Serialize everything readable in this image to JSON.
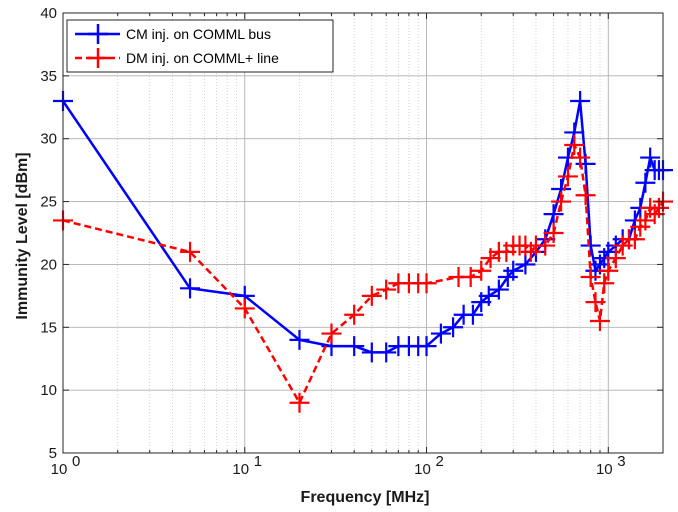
{
  "chart_data": {
    "type": "line",
    "xscale": "log",
    "xlim": [
      1,
      2000
    ],
    "ylim": [
      5,
      40
    ],
    "xlabel": "Frequency [MHz]",
    "ylabel": "Immunity Level [dBm]",
    "grid": true,
    "legend_position": "top-left",
    "y_ticks": [
      5,
      10,
      15,
      20,
      25,
      30,
      35,
      40
    ],
    "x_major_ticks": [
      {
        "value": 1,
        "base": "10",
        "exp": "0"
      },
      {
        "value": 10,
        "base": "10",
        "exp": "1"
      },
      {
        "value": 100,
        "base": "10",
        "exp": "2"
      },
      {
        "value": 1000,
        "base": "10",
        "exp": "3"
      }
    ],
    "series": [
      {
        "name": "CM inj. on COMML bus",
        "color": "#0000ff",
        "style": "solid",
        "marker": "plus",
        "x": [
          1,
          5,
          10,
          20,
          30,
          40,
          50,
          60,
          70,
          80,
          90,
          100,
          120,
          140,
          160,
          180,
          200,
          220,
          250,
          280,
          300,
          350,
          400,
          450,
          500,
          550,
          600,
          650,
          700,
          750,
          800,
          850,
          900,
          950,
          1000,
          1100,
          1200,
          1300,
          1400,
          1500,
          1600,
          1700,
          1800,
          1900,
          2000
        ],
        "y": [
          33,
          18.1,
          17.5,
          14,
          13.5,
          13.5,
          13,
          13,
          13.5,
          13.5,
          13.5,
          13.5,
          14.5,
          15,
          16,
          16,
          17,
          17.5,
          18,
          19,
          19.5,
          20,
          21,
          22,
          24,
          26,
          28.5,
          30.5,
          33,
          28,
          21.5,
          19.5,
          20,
          20.5,
          21,
          21.5,
          22,
          22,
          23.5,
          24.5,
          26.5,
          28.5,
          27.5,
          27.5,
          27.5
        ]
      },
      {
        "name": "DM inj. on COMML+ line",
        "color": "#ff0000",
        "style": "dashed",
        "marker": "plus",
        "x": [
          1,
          5,
          10,
          20,
          30,
          40,
          50,
          60,
          70,
          80,
          90,
          100,
          150,
          175,
          200,
          225,
          250,
          275,
          300,
          325,
          350,
          375,
          400,
          450,
          500,
          550,
          600,
          650,
          700,
          750,
          800,
          850,
          900,
          950,
          1000,
          1100,
          1200,
          1300,
          1400,
          1500,
          1600,
          1700,
          1800,
          1900,
          2000
        ],
        "y": [
          23.5,
          21,
          16.5,
          9,
          14.5,
          16,
          17.5,
          18,
          18.5,
          18.5,
          18.5,
          18.5,
          19,
          19,
          19.5,
          20.5,
          21,
          21,
          21.5,
          21.5,
          21.5,
          21,
          21.5,
          21.5,
          22.5,
          25,
          27,
          29.5,
          28.5,
          25.5,
          19,
          17,
          15.5,
          18.5,
          19.5,
          20.5,
          21.5,
          22,
          22,
          23,
          23.5,
          24.5,
          24,
          24.5,
          25
        ]
      }
    ]
  }
}
